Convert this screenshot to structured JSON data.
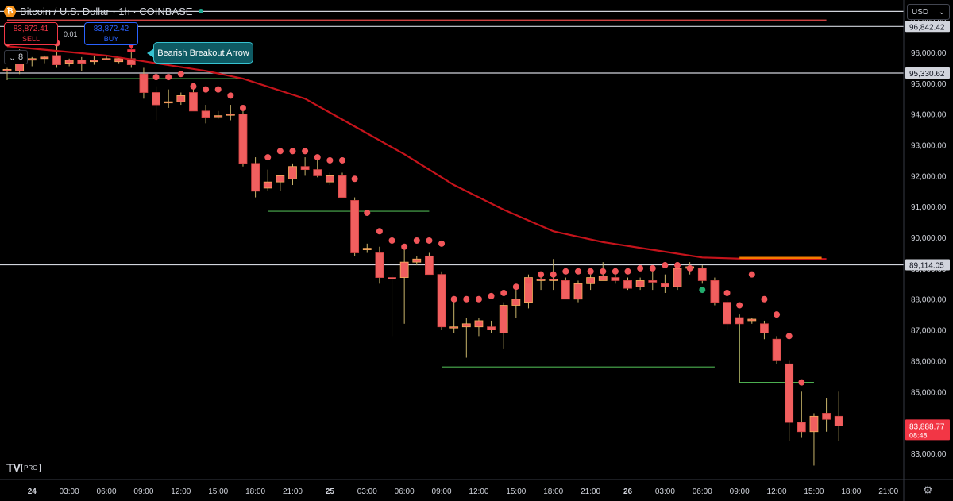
{
  "header": {
    "coin_symbol": "₿",
    "title": "Bitcoin / U.S. Dollar · 1h · COINBASE",
    "status_color": "#22ab94"
  },
  "trade": {
    "sell_price": "83,872.41",
    "sell_label": "SELL",
    "buy_price": "83,872.42",
    "buy_label": "BUY",
    "spread": "0.01"
  },
  "indicators_toggle": {
    "icon": "chevron-down-icon",
    "count": "8"
  },
  "annotation": {
    "text": "Bearish Breakout Arrow"
  },
  "currency": {
    "selected": "USD",
    "icon": "chevron-down-icon"
  },
  "branding": {
    "logo": "TV",
    "badge": "PRO"
  },
  "settings": {
    "icon": "gear-icon"
  },
  "colors": {
    "up": "#f5b05c",
    "down": "#f15f5f",
    "wick": "#c9b46a",
    "ma": "#c5131b",
    "dot_red": "#f2565a",
    "dot_green": "#22ab6d",
    "support": "#4caf50",
    "accent": "#f57c00"
  },
  "chart_data": {
    "type": "candlestick",
    "symbol": "BTCUSD",
    "interval": "1h",
    "ylim": [
      82700,
      97700
    ],
    "y_ticks": [
      83000,
      84000,
      85000,
      86000,
      87000,
      88000,
      89000,
      90000,
      91000,
      92000,
      93000,
      94000,
      95000,
      96000,
      97000
    ],
    "y_tick_labels": [
      "83,000.00",
      "84,000.00",
      "85,000.00",
      "86,000.00",
      "87,000.00",
      "88,000.00",
      "89,000.00",
      "90,000.00",
      "91,000.00",
      "92,000.00",
      "93,000.00",
      "94,000.00",
      "95,000.00",
      "96,000.00",
      "97,000.00"
    ],
    "x_ticks": [
      {
        "label": "24",
        "bar": 2
      },
      {
        "label": "03:00",
        "bar": 5
      },
      {
        "label": "06:00",
        "bar": 8
      },
      {
        "label": "09:00",
        "bar": 11
      },
      {
        "label": "12:00",
        "bar": 14
      },
      {
        "label": "15:00",
        "bar": 17
      },
      {
        "label": "18:00",
        "bar": 20
      },
      {
        "label": "21:00",
        "bar": 23
      },
      {
        "label": "25",
        "bar": 26
      },
      {
        "label": "03:00",
        "bar": 29
      },
      {
        "label": "06:00",
        "bar": 32
      },
      {
        "label": "09:00",
        "bar": 35
      },
      {
        "label": "12:00",
        "bar": 38
      },
      {
        "label": "15:00",
        "bar": 41
      },
      {
        "label": "18:00",
        "bar": 44
      },
      {
        "label": "21:00",
        "bar": 47
      },
      {
        "label": "26",
        "bar": 50
      },
      {
        "label": "03:00",
        "bar": 53
      },
      {
        "label": "06:00",
        "bar": 56
      },
      {
        "label": "09:00",
        "bar": 59
      },
      {
        "label": "12:00",
        "bar": 62
      },
      {
        "label": "15:00",
        "bar": 65
      },
      {
        "label": "18:00",
        "bar": 68
      },
      {
        "label": "21:00",
        "bar": 71
      }
    ],
    "candles": [
      {
        "o": 95400,
        "h": 95500,
        "l": 95100,
        "c": 95450
      },
      {
        "o": 95400,
        "h": 96100,
        "l": 95300,
        "c": 95900
      },
      {
        "o": 95750,
        "h": 95850,
        "l": 95550,
        "c": 95800
      },
      {
        "o": 95800,
        "h": 95900,
        "l": 95650,
        "c": 95850
      },
      {
        "o": 95900,
        "h": 96300,
        "l": 95500,
        "c": 95600
      },
      {
        "o": 95650,
        "h": 95800,
        "l": 95550,
        "c": 95750
      },
      {
        "o": 95750,
        "h": 95850,
        "l": 95400,
        "c": 95650
      },
      {
        "o": 95700,
        "h": 95900,
        "l": 95600,
        "c": 95750
      },
      {
        "o": 95800,
        "h": 95900,
        "l": 95750,
        "c": 95800
      },
      {
        "o": 95700,
        "h": 95850,
        "l": 95650,
        "c": 95800
      },
      {
        "o": 95800,
        "h": 96000,
        "l": 95500,
        "c": 95600
      },
      {
        "o": 95300,
        "h": 95500,
        "l": 94500,
        "c": 94700
      },
      {
        "o": 94700,
        "h": 94900,
        "l": 93800,
        "c": 94300
      },
      {
        "o": 94400,
        "h": 94800,
        "l": 94200,
        "c": 94400
      },
      {
        "o": 94400,
        "h": 94700,
        "l": 94300,
        "c": 94600
      },
      {
        "o": 94700,
        "h": 94900,
        "l": 94100,
        "c": 94100
      },
      {
        "o": 94100,
        "h": 94300,
        "l": 93700,
        "c": 93900
      },
      {
        "o": 93950,
        "h": 94100,
        "l": 93850,
        "c": 93950
      },
      {
        "o": 94000,
        "h": 94300,
        "l": 93800,
        "c": 94000
      },
      {
        "o": 94000,
        "h": 94200,
        "l": 92300,
        "c": 92400
      },
      {
        "o": 92400,
        "h": 92600,
        "l": 91300,
        "c": 91500
      },
      {
        "o": 91600,
        "h": 92200,
        "l": 91500,
        "c": 91800
      },
      {
        "o": 91800,
        "h": 92000,
        "l": 91500,
        "c": 92000
      },
      {
        "o": 91900,
        "h": 92400,
        "l": 91700,
        "c": 92300
      },
      {
        "o": 92300,
        "h": 92600,
        "l": 92000,
        "c": 92200
      },
      {
        "o": 92200,
        "h": 92500,
        "l": 91950,
        "c": 92000
      },
      {
        "o": 91800,
        "h": 92100,
        "l": 91700,
        "c": 92000
      },
      {
        "o": 92000,
        "h": 92100,
        "l": 91300,
        "c": 91300
      },
      {
        "o": 91200,
        "h": 91300,
        "l": 89400,
        "c": 89500
      },
      {
        "o": 89600,
        "h": 89800,
        "l": 89500,
        "c": 89650
      },
      {
        "o": 89500,
        "h": 89700,
        "l": 88500,
        "c": 88700
      },
      {
        "o": 88700,
        "h": 88800,
        "l": 86800,
        "c": 88650
      },
      {
        "o": 88700,
        "h": 89600,
        "l": 87200,
        "c": 89200
      },
      {
        "o": 89200,
        "h": 89400,
        "l": 89100,
        "c": 89300
      },
      {
        "o": 89400,
        "h": 89500,
        "l": 88800,
        "c": 88800
      },
      {
        "o": 88800,
        "h": 88900,
        "l": 87000,
        "c": 87100
      },
      {
        "o": 87100,
        "h": 88000,
        "l": 86900,
        "c": 87100
      },
      {
        "o": 87100,
        "h": 87400,
        "l": 86100,
        "c": 87200
      },
      {
        "o": 87100,
        "h": 87400,
        "l": 86800,
        "c": 87300
      },
      {
        "o": 87100,
        "h": 87300,
        "l": 86900,
        "c": 87000
      },
      {
        "o": 86900,
        "h": 87900,
        "l": 86400,
        "c": 87800
      },
      {
        "o": 87800,
        "h": 88300,
        "l": 87400,
        "c": 88000
      },
      {
        "o": 87900,
        "h": 88800,
        "l": 87700,
        "c": 88700
      },
      {
        "o": 88600,
        "h": 88800,
        "l": 88300,
        "c": 88650
      },
      {
        "o": 88600,
        "h": 89300,
        "l": 88300,
        "c": 88650
      },
      {
        "o": 88600,
        "h": 88700,
        "l": 88000,
        "c": 88000
      },
      {
        "o": 88000,
        "h": 88600,
        "l": 87900,
        "c": 88500
      },
      {
        "o": 88500,
        "h": 88800,
        "l": 88300,
        "c": 88700
      },
      {
        "o": 88600,
        "h": 89200,
        "l": 88600,
        "c": 88750
      },
      {
        "o": 88700,
        "h": 89000,
        "l": 88500,
        "c": 88600
      },
      {
        "o": 88600,
        "h": 88700,
        "l": 88300,
        "c": 88350
      },
      {
        "o": 88400,
        "h": 88700,
        "l": 88300,
        "c": 88600
      },
      {
        "o": 88600,
        "h": 88900,
        "l": 88300,
        "c": 88550
      },
      {
        "o": 88500,
        "h": 88800,
        "l": 88200,
        "c": 88400
      },
      {
        "o": 88400,
        "h": 89200,
        "l": 88300,
        "c": 89000
      },
      {
        "o": 89000,
        "h": 89200,
        "l": 88800,
        "c": 89050
      },
      {
        "o": 89000,
        "h": 89100,
        "l": 88500,
        "c": 88600
      },
      {
        "o": 88600,
        "h": 88700,
        "l": 87800,
        "c": 87900
      },
      {
        "o": 87900,
        "h": 88000,
        "l": 87000,
        "c": 87200
      },
      {
        "o": 87400,
        "h": 87500,
        "l": 85300,
        "c": 87200
      },
      {
        "o": 87300,
        "h": 87400,
        "l": 87200,
        "c": 87350
      },
      {
        "o": 87200,
        "h": 87300,
        "l": 86700,
        "c": 86900
      },
      {
        "o": 86700,
        "h": 86800,
        "l": 85900,
        "c": 86000
      },
      {
        "o": 85900,
        "h": 86000,
        "l": 83400,
        "c": 84000
      },
      {
        "o": 84000,
        "h": 85000,
        "l": 83500,
        "c": 83700
      },
      {
        "o": 83700,
        "h": 84300,
        "l": 82600,
        "c": 84200
      },
      {
        "o": 84300,
        "h": 84800,
        "l": 83700,
        "c": 84100
      },
      {
        "o": 84200,
        "h": 85000,
        "l": 83400,
        "c": 83889
      }
    ],
    "sar_dots": [
      [
        0,
        96300
      ],
      [
        4,
        96300
      ],
      [
        11,
        95200
      ],
      [
        12,
        95200
      ],
      [
        13,
        95200
      ],
      [
        14,
        95300
      ],
      [
        15,
        94900
      ],
      [
        16,
        94800
      ],
      [
        17,
        94800
      ],
      [
        18,
        94600
      ],
      [
        19,
        94200
      ],
      [
        21,
        92600
      ],
      [
        22,
        92800
      ],
      [
        23,
        92800
      ],
      [
        24,
        92800
      ],
      [
        25,
        92600
      ],
      [
        26,
        92500
      ],
      [
        27,
        92500
      ],
      [
        28,
        91900
      ],
      [
        29,
        90800
      ],
      [
        30,
        90200
      ],
      [
        31,
        89900
      ],
      [
        32,
        89700
      ],
      [
        33,
        89900
      ],
      [
        34,
        89900
      ],
      [
        35,
        89800
      ],
      [
        36,
        88000
      ],
      [
        37,
        88000
      ],
      [
        38,
        88000
      ],
      [
        39,
        88100
      ],
      [
        40,
        88200
      ],
      [
        41,
        88400
      ],
      [
        42,
        88600
      ],
      [
        43,
        88800
      ],
      [
        44,
        88800
      ],
      [
        45,
        88900
      ],
      [
        46,
        88900
      ],
      [
        47,
        88900
      ],
      [
        48,
        88900
      ],
      [
        49,
        88900
      ],
      [
        50,
        88900
      ],
      [
        51,
        89000
      ],
      [
        52,
        89000
      ],
      [
        53,
        89100
      ],
      [
        54,
        89100
      ],
      [
        55,
        89000
      ],
      [
        58,
        88200
      ],
      [
        59,
        87800
      ],
      [
        60,
        88800
      ],
      [
        61,
        88000
      ],
      [
        62,
        87500
      ],
      [
        63,
        86800
      ],
      [
        64,
        85300
      ]
    ],
    "sar_green_dots": [
      [
        56,
        88300
      ]
    ],
    "ma_line": [
      [
        0,
        96200
      ],
      [
        8,
        95900
      ],
      [
        16,
        95400
      ],
      [
        19,
        95150
      ],
      [
        24,
        94500
      ],
      [
        28,
        93600
      ],
      [
        32,
        92700
      ],
      [
        36,
        91700
      ],
      [
        40,
        90900
      ],
      [
        44,
        90200
      ],
      [
        48,
        89850
      ],
      [
        52,
        89600
      ],
      [
        56,
        89350
      ],
      [
        60,
        89300
      ],
      [
        66,
        89300
      ]
    ],
    "ma_highlight": {
      "from_bar": 59,
      "to_bar": 66,
      "value": 89340
    },
    "support_lines": [
      {
        "from_bar": 0,
        "to_bar": 19,
        "value": 95150
      },
      {
        "from_bar": 21,
        "to_bar": 34,
        "value": 90850
      },
      {
        "from_bar": 35,
        "to_bar": 57,
        "value": 85800
      },
      {
        "from_bar": 59,
        "to_bar": 65,
        "value": 85300,
        "drop_from": 87200
      }
    ],
    "resistance_line": {
      "from_bar": 0,
      "to_bar": 66,
      "value": 97050
    },
    "horizontal_lines": [
      {
        "value": 97330,
        "label": ""
      },
      {
        "value": 96842.42,
        "label": "96,842.42"
      },
      {
        "value": 95330.62,
        "label": "95,330.62"
      },
      {
        "value": 89114.05,
        "label": "89,114.05"
      }
    ],
    "last_price": {
      "value": 83888.77,
      "label": "83,888.77",
      "countdown": "08:48"
    },
    "arrow_marker": {
      "bar": 10,
      "value": 96150
    }
  }
}
